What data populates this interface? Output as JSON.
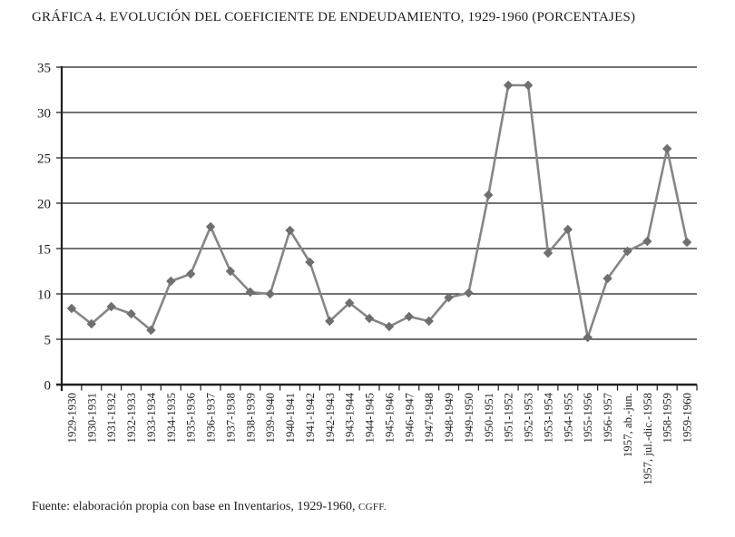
{
  "page": {
    "source_note": {
      "text": "Fuente: elaboración propia con base en Inventarios, 1929-1960, ",
      "abbr": "CGFF."
    }
  },
  "chart_data": {
    "type": "line",
    "title": "GRÁFICA 4. EVOLUCIÓN DEL COEFICIENTE DE ENDEUDAMIENTO, 1929-1960 (PORCENTAJES)",
    "categories": [
      "1929-1930",
      "1930-1931",
      "1931-1932",
      "1932-1933",
      "1933-1934",
      "1934-1935",
      "1935-1936",
      "1936-1937",
      "1937-1938",
      "1938-1939",
      "1939-1940",
      "1940-1941",
      "1941-1942",
      "1942-1943",
      "1943-1944",
      "1944-1945",
      "1945-1946",
      "1946-1947",
      "1947-1948",
      "1948-1949",
      "1949-1950",
      "1950-1951",
      "1951-1952",
      "1952-1953",
      "1953-1954",
      "1954-1955",
      "1955-1956",
      "1956-1957",
      "1957, ab.-jun.",
      "1957, jul.-dic.-1958",
      "1958-1959",
      "1959-1960"
    ],
    "values": [
      8.4,
      6.7,
      8.6,
      7.8,
      6.0,
      11.4,
      12.2,
      17.4,
      12.5,
      10.2,
      10.0,
      17.0,
      13.5,
      7.0,
      9.0,
      7.3,
      6.4,
      7.5,
      7.0,
      9.6,
      10.1,
      20.9,
      33.0,
      33.0,
      14.5,
      17.1,
      5.2,
      11.7,
      14.7,
      15.8,
      26.0,
      15.7
    ],
    "xlabel": "",
    "ylabel": "",
    "ylim": [
      0,
      35
    ],
    "yticks": [
      0,
      5,
      10,
      15,
      20,
      25,
      30,
      35
    ],
    "grid": "horizontal",
    "legend": "none",
    "x_label_rotation": -90,
    "marker": "diamond",
    "line_color": "#868686",
    "marker_color": "#6f6f6f",
    "axis_color": "#1f1f1f",
    "source": "Fuente: elaboración propia con base en Inventarios, 1929-1960, CGFF."
  }
}
